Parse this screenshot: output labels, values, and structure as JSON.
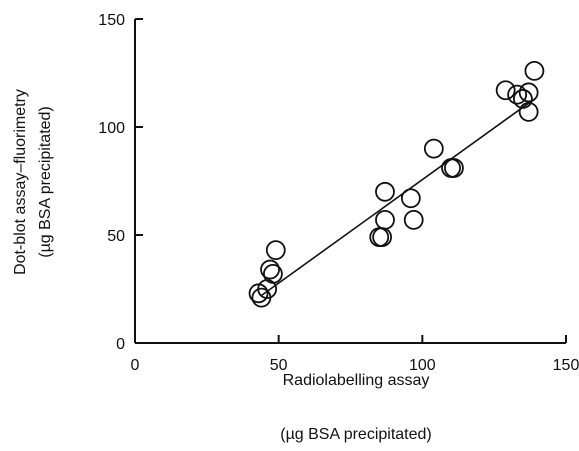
{
  "chart_data": {
    "type": "scatter",
    "xlabel": "Radiolabelling assay",
    "xlabel_unit": "(µg BSA precipitated)",
    "ylabel": "Dot-blot assay–fluorimetry",
    "ylabel_unit": "(µg BSA precipitated)",
    "xlim": [
      0,
      150
    ],
    "ylim": [
      0,
      150
    ],
    "x_ticks": [
      0,
      50,
      100,
      150
    ],
    "y_ticks": [
      0,
      50,
      100,
      150
    ],
    "x_tick_labels": [
      "0",
      "50",
      "100",
      "150"
    ],
    "y_tick_labels": [
      "0",
      "50",
      "100",
      "150"
    ],
    "grid": false,
    "points": [
      {
        "x": 43,
        "y": 23
      },
      {
        "x": 44,
        "y": 21
      },
      {
        "x": 46,
        "y": 25
      },
      {
        "x": 47,
        "y": 34
      },
      {
        "x": 48,
        "y": 32
      },
      {
        "x": 49,
        "y": 43
      },
      {
        "x": 85,
        "y": 49
      },
      {
        "x": 86,
        "y": 49
      },
      {
        "x": 87,
        "y": 57
      },
      {
        "x": 87,
        "y": 70
      },
      {
        "x": 96,
        "y": 67
      },
      {
        "x": 97,
        "y": 57
      },
      {
        "x": 104,
        "y": 90
      },
      {
        "x": 110,
        "y": 81
      },
      {
        "x": 111,
        "y": 81
      },
      {
        "x": 129,
        "y": 117
      },
      {
        "x": 133,
        "y": 115
      },
      {
        "x": 135,
        "y": 113
      },
      {
        "x": 137,
        "y": 116
      },
      {
        "x": 137,
        "y": 107
      },
      {
        "x": 139,
        "y": 126
      }
    ],
    "regression_line": {
      "x": [
        44,
        138
      ],
      "y": [
        22,
        112
      ]
    }
  }
}
